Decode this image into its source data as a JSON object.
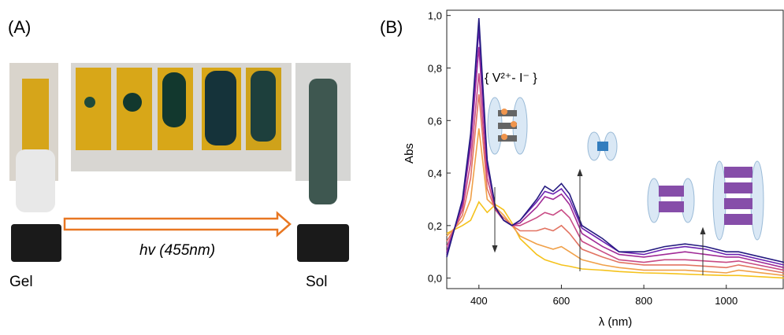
{
  "panel_a": {
    "label": "(A)",
    "gel": "Gel",
    "sol": "Sol",
    "light": "hv (455nm)"
  },
  "panel_b": {
    "label": "(B)"
  },
  "chart_data": {
    "type": "line",
    "xlabel": "λ (nm)",
    "ylabel": "Abs",
    "annotations": [
      "{ V²⁺- I⁻ }"
    ],
    "x": [
      322,
      360,
      380,
      400,
      420,
      440,
      460,
      480,
      500,
      540,
      560,
      580,
      600,
      620,
      650,
      700,
      740,
      800,
      850,
      900,
      950,
      1000,
      1030,
      1140
    ],
    "series": [
      {
        "color": "#f5c21b",
        "values": [
          0.17,
          0.2,
          0.22,
          0.29,
          0.25,
          0.28,
          0.26,
          0.21,
          0.15,
          0.09,
          0.07,
          0.06,
          0.05,
          0.045,
          0.035,
          0.03,
          0.025,
          0.02,
          0.018,
          0.015,
          0.012,
          0.01,
          0.01,
          0.0
        ]
      },
      {
        "color": "#f0a048",
        "values": [
          0.16,
          0.22,
          0.3,
          0.57,
          0.3,
          0.27,
          0.24,
          0.2,
          0.16,
          0.13,
          0.12,
          0.11,
          0.12,
          0.1,
          0.07,
          0.05,
          0.04,
          0.03,
          0.03,
          0.03,
          0.025,
          0.02,
          0.03,
          0.01
        ]
      },
      {
        "color": "#e27462",
        "values": [
          0.14,
          0.24,
          0.38,
          0.7,
          0.34,
          0.26,
          0.23,
          0.2,
          0.18,
          0.18,
          0.19,
          0.18,
          0.2,
          0.17,
          0.11,
          0.08,
          0.06,
          0.05,
          0.05,
          0.05,
          0.045,
          0.04,
          0.05,
          0.02
        ]
      },
      {
        "color": "#c84a84",
        "values": [
          0.12,
          0.26,
          0.44,
          0.78,
          0.38,
          0.26,
          0.22,
          0.2,
          0.2,
          0.23,
          0.25,
          0.24,
          0.26,
          0.23,
          0.14,
          0.1,
          0.07,
          0.06,
          0.07,
          0.07,
          0.065,
          0.06,
          0.065,
          0.03
        ]
      },
      {
        "color": "#a02a96",
        "values": [
          0.1,
          0.28,
          0.5,
          0.88,
          0.42,
          0.27,
          0.22,
          0.2,
          0.21,
          0.27,
          0.31,
          0.3,
          0.32,
          0.28,
          0.17,
          0.12,
          0.09,
          0.08,
          0.09,
          0.1,
          0.09,
          0.08,
          0.08,
          0.04
        ]
      },
      {
        "color": "#6a22b0",
        "values": [
          0.09,
          0.29,
          0.53,
          0.95,
          0.44,
          0.27,
          0.22,
          0.2,
          0.22,
          0.29,
          0.33,
          0.32,
          0.34,
          0.3,
          0.19,
          0.14,
          0.1,
          0.09,
          0.11,
          0.12,
          0.11,
          0.09,
          0.09,
          0.05
        ]
      },
      {
        "color": "#241a80",
        "values": [
          0.08,
          0.3,
          0.55,
          0.99,
          0.45,
          0.27,
          0.22,
          0.2,
          0.22,
          0.3,
          0.35,
          0.33,
          0.36,
          0.32,
          0.2,
          0.15,
          0.1,
          0.1,
          0.12,
          0.13,
          0.12,
          0.1,
          0.1,
          0.06
        ]
      }
    ],
    "xlim": [
      322,
      1140
    ],
    "ylim": [
      -0.04,
      1.02
    ],
    "xticks": [
      400,
      600,
      800,
      1000
    ],
    "yticks": [
      {
        "value": 0,
        "label": "0,0"
      },
      {
        "value": 0.2,
        "label": "0,2"
      },
      {
        "value": 0.4,
        "label": "0,4"
      },
      {
        "value": 0.6,
        "label": "0,6"
      },
      {
        "value": 0.8,
        "label": "0,8"
      },
      {
        "value": 1.0,
        "label": "1,0"
      }
    ]
  }
}
